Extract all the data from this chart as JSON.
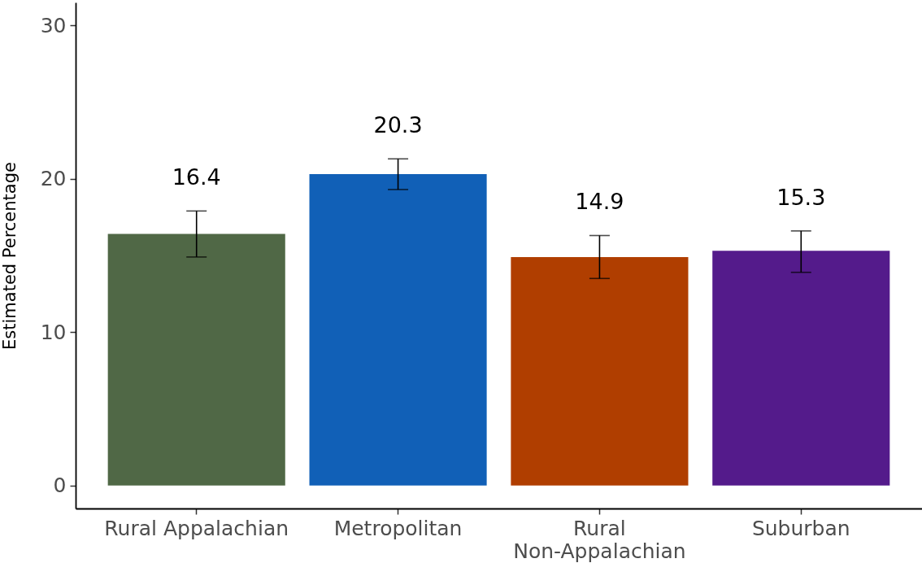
{
  "chart_data": {
    "type": "bar",
    "ylabel": "Estimated Percentage",
    "categories": [
      "Rural Appalachian",
      "Metropolitan",
      "Rural\nNon-Appalachian",
      "Suburban"
    ],
    "values": [
      16.4,
      20.3,
      14.9,
      15.3
    ],
    "colors": [
      "#506846",
      "#1160b7",
      "#b03e00",
      "#541b8b"
    ],
    "errors": [
      [
        14.9,
        17.9
      ],
      [
        19.3,
        21.3
      ],
      [
        13.5,
        16.3
      ],
      [
        13.9,
        16.6
      ]
    ],
    "ylim": [
      -1.5,
      31.5
    ],
    "yticks": [
      0,
      10,
      20,
      30
    ],
    "data_labels": true
  }
}
